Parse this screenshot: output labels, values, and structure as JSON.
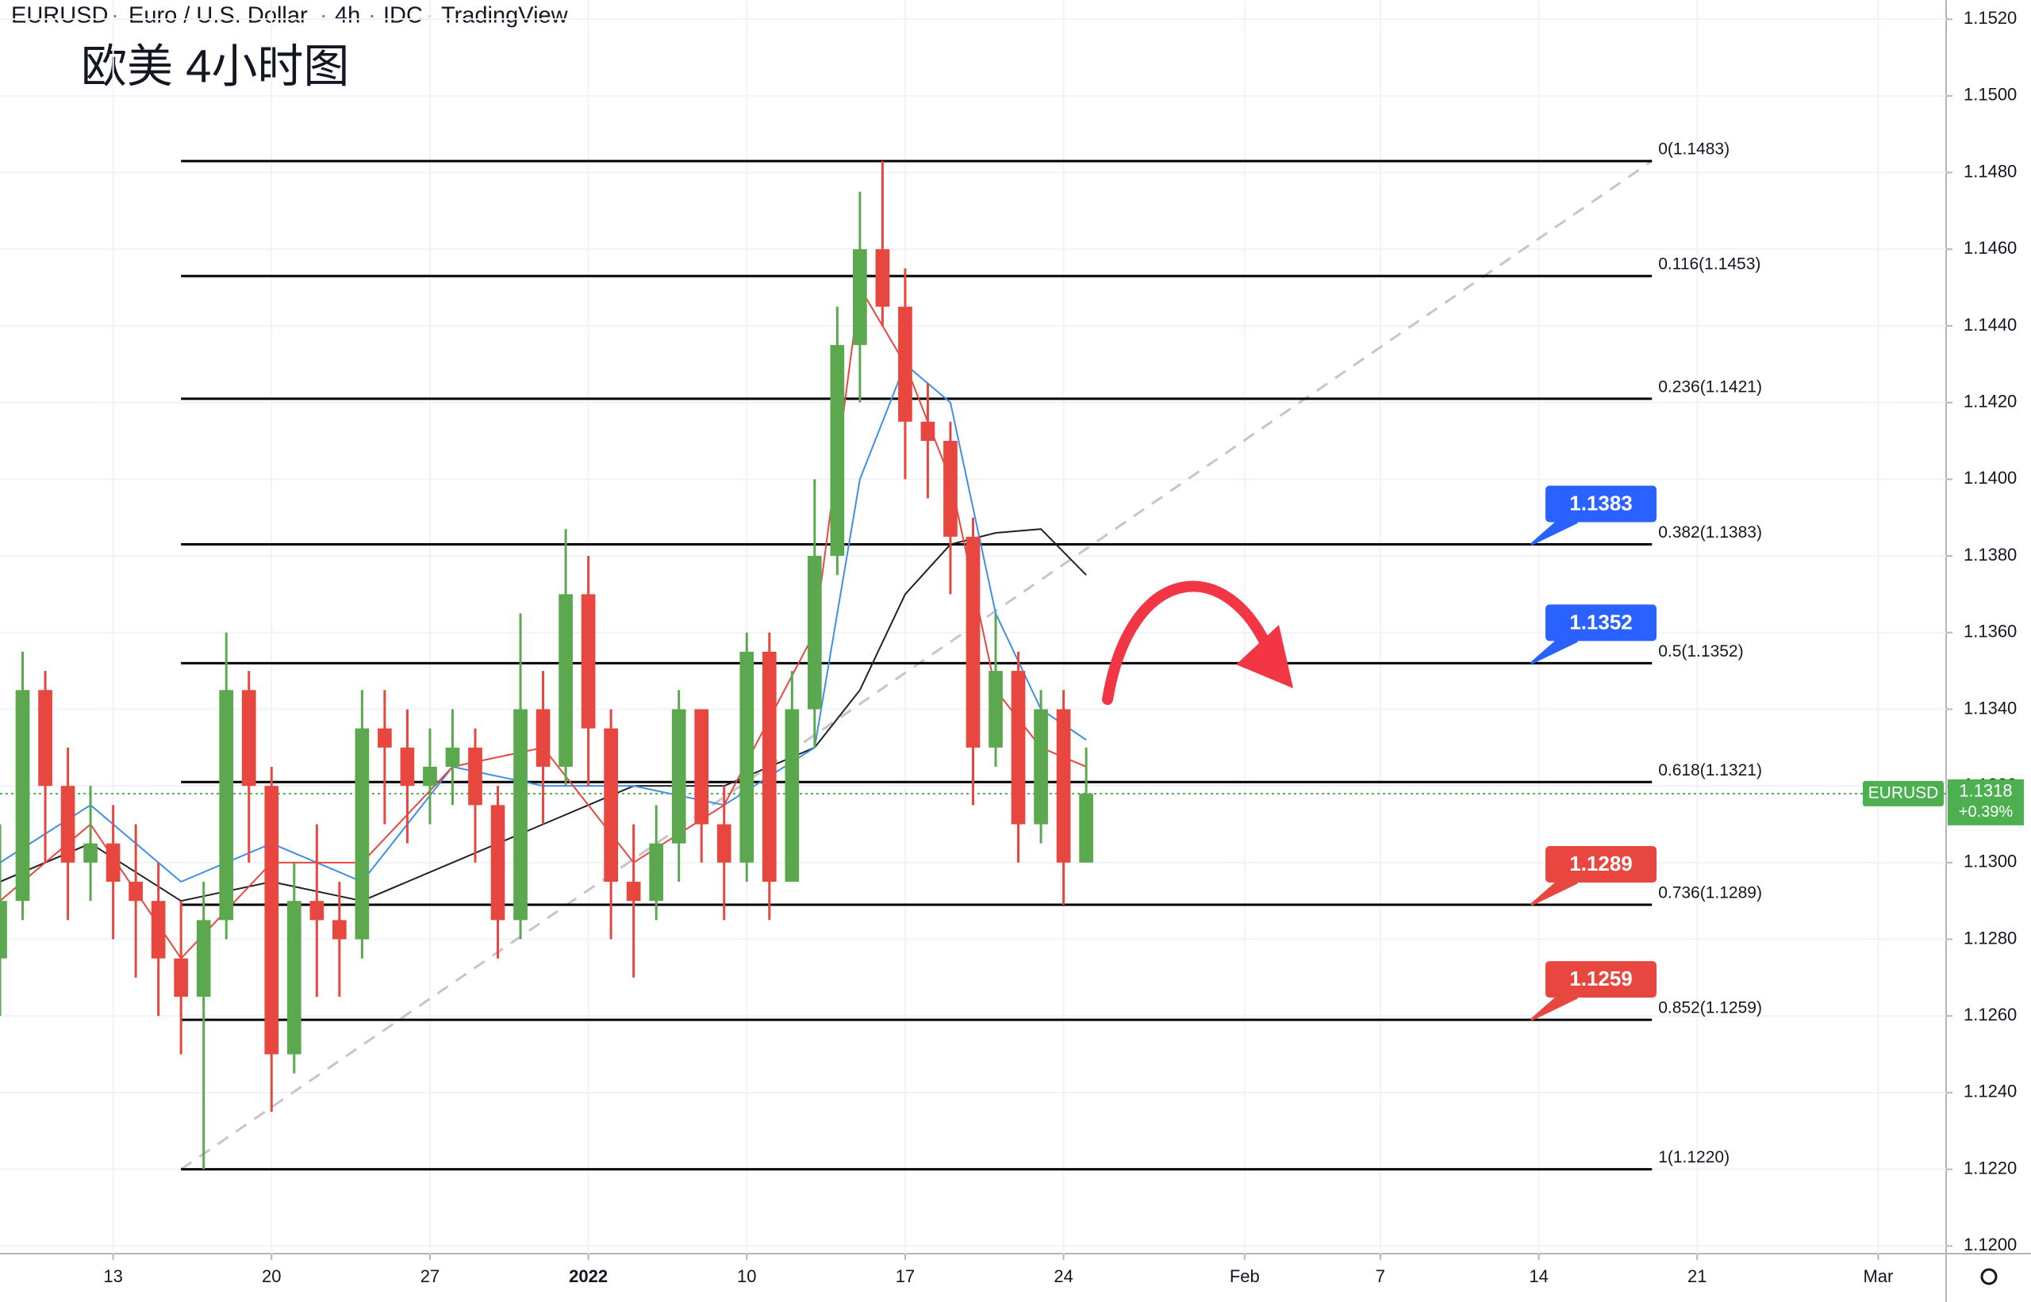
{
  "header": {
    "symbol": "EURUSD",
    "description": "Euro / U.S. Dollar",
    "interval": "4h",
    "source": "IDC",
    "platform": "TradingView"
  },
  "chart_data": {
    "type": "candlestick",
    "title": "欧美 4小时图",
    "x": [
      -5,
      -4,
      -3,
      -2,
      -1,
      0,
      1,
      2,
      3,
      4,
      5,
      6,
      7,
      8,
      9,
      10,
      11,
      12,
      13,
      14,
      15,
      16,
      17,
      18,
      19,
      20,
      21,
      22,
      23,
      24,
      25,
      26,
      27,
      28,
      29,
      30,
      31,
      32,
      33,
      34,
      35,
      36,
      37,
      38,
      39,
      40,
      41,
      42,
      43
    ],
    "open": [
      1.1275,
      1.129,
      1.1345,
      1.132,
      1.13,
      1.1305,
      1.1295,
      1.129,
      1.1275,
      1.1265,
      1.1285,
      1.1345,
      1.132,
      1.125,
      1.129,
      1.1285,
      1.128,
      1.1335,
      1.133,
      1.132,
      1.1325,
      1.133,
      1.1315,
      1.1285,
      1.134,
      1.1325,
      1.137,
      1.1335,
      1.1295,
      1.129,
      1.1305,
      1.134,
      1.131,
      1.13,
      1.1355,
      1.1295,
      1.134,
      1.138,
      1.1435,
      1.146,
      1.1445,
      1.1415,
      1.141,
      1.1385,
      1.133,
      1.135,
      1.131,
      1.134,
      1.13
    ],
    "high": [
      1.131,
      1.1355,
      1.135,
      1.133,
      1.132,
      1.1315,
      1.131,
      1.13,
      1.129,
      1.1295,
      1.136,
      1.135,
      1.1325,
      1.13,
      1.131,
      1.1295,
      1.1345,
      1.1345,
      1.134,
      1.1335,
      1.134,
      1.1335,
      1.132,
      1.1365,
      1.135,
      1.1387,
      1.138,
      1.134,
      1.131,
      1.1315,
      1.1345,
      1.134,
      1.132,
      1.136,
      1.136,
      1.135,
      1.14,
      1.1445,
      1.1475,
      1.1483,
      1.1455,
      1.1425,
      1.1415,
      1.139,
      1.1365,
      1.1355,
      1.1345,
      1.1345,
      1.133
    ],
    "low": [
      1.126,
      1.1285,
      1.13,
      1.1285,
      1.129,
      1.128,
      1.127,
      1.126,
      1.125,
      1.122,
      1.128,
      1.13,
      1.1235,
      1.1245,
      1.1265,
      1.1265,
      1.1275,
      1.131,
      1.1305,
      1.131,
      1.1315,
      1.13,
      1.1275,
      1.128,
      1.131,
      1.132,
      1.132,
      1.128,
      1.127,
      1.1285,
      1.1295,
      1.13,
      1.1285,
      1.1295,
      1.1285,
      1.1295,
      1.133,
      1.1375,
      1.142,
      1.144,
      1.14,
      1.1395,
      1.137,
      1.1315,
      1.1325,
      1.13,
      1.1305,
      1.1289,
      1.13
    ],
    "close": [
      1.129,
      1.1345,
      1.132,
      1.13,
      1.1305,
      1.1295,
      1.129,
      1.1275,
      1.1265,
      1.1285,
      1.1345,
      1.132,
      1.125,
      1.129,
      1.1285,
      1.128,
      1.1335,
      1.133,
      1.132,
      1.1325,
      1.133,
      1.1315,
      1.1285,
      1.134,
      1.1325,
      1.137,
      1.1335,
      1.1295,
      1.129,
      1.1305,
      1.134,
      1.131,
      1.13,
      1.1355,
      1.1295,
      1.134,
      1.138,
      1.1435,
      1.146,
      1.1445,
      1.1415,
      1.141,
      1.1385,
      1.133,
      1.135,
      1.131,
      1.134,
      1.13,
      1.1318
    ],
    "up_color": "#5ba84f",
    "down_color": "#e8473f",
    "series": [
      {
        "color": "#222222",
        "x": [
          -5,
          -1,
          3,
          7,
          11,
          15,
          19,
          23,
          27,
          31,
          33,
          35,
          37,
          39,
          41,
          43
        ],
        "values": [
          1.1295,
          1.1305,
          1.129,
          1.1295,
          1.129,
          1.13,
          1.131,
          1.132,
          1.132,
          1.133,
          1.1345,
          1.137,
          1.1383,
          1.1386,
          1.1387,
          1.1375
        ]
      },
      {
        "color": "#3d8fe8",
        "x": [
          -5,
          -1,
          3,
          7,
          11,
          15,
          19,
          23,
          27,
          31,
          33,
          35,
          37,
          39,
          41,
          43
        ],
        "values": [
          1.13,
          1.1315,
          1.1295,
          1.1305,
          1.1295,
          1.1325,
          1.132,
          1.132,
          1.1315,
          1.133,
          1.14,
          1.143,
          1.142,
          1.1365,
          1.134,
          1.1332
        ]
      },
      {
        "color": "#e8473f",
        "x": [
          -5,
          -1,
          3,
          7,
          11,
          15,
          19,
          23,
          27,
          31,
          33,
          35,
          37,
          39,
          41,
          43
        ],
        "values": [
          1.129,
          1.131,
          1.1275,
          1.13,
          1.13,
          1.1325,
          1.133,
          1.13,
          1.1315,
          1.136,
          1.145,
          1.143,
          1.14,
          1.1345,
          1.133,
          1.1325
        ]
      }
    ],
    "fib": {
      "x": [
        3,
        68
      ],
      "levels": [
        {
          "value": 1.1483,
          "label": "0(1.1483)"
        },
        {
          "value": 1.1453,
          "label": "0.116(1.1453)"
        },
        {
          "value": 1.1421,
          "label": "0.236(1.1421)"
        },
        {
          "value": 1.1383,
          "label": "0.382(1.1383)"
        },
        {
          "value": 1.1352,
          "label": "0.5(1.1352)"
        },
        {
          "value": 1.1321,
          "label": "0.618(1.1321)"
        },
        {
          "value": 1.1289,
          "label": "0.736(1.1289)"
        },
        {
          "value": 1.1259,
          "label": "0.852(1.1259)"
        },
        {
          "value": 1.122,
          "label": "1(1.1220)"
        }
      ]
    },
    "callouts": [
      {
        "value": 1.1383,
        "color": "#2962ff"
      },
      {
        "value": 1.1352,
        "color": "#2962ff"
      },
      {
        "value": 1.1289,
        "color": "#e8473f"
      },
      {
        "value": 1.1259,
        "color": "#e8473f"
      }
    ],
    "last": {
      "symbol": "EURUSD",
      "value": 1.1318,
      "change": "+0.39%",
      "color": "#4caf50"
    },
    "xlim": [
      -5,
      81
    ],
    "xticks": [
      {
        "value": 0,
        "label": "13"
      },
      {
        "value": 7,
        "label": "20"
      },
      {
        "value": 14,
        "label": "27"
      },
      {
        "value": 21,
        "label": "2022"
      },
      {
        "value": 28,
        "label": "10"
      },
      {
        "value": 35,
        "label": "17"
      },
      {
        "value": 42,
        "label": "24"
      },
      {
        "value": 50,
        "label": "Feb"
      },
      {
        "value": 56,
        "label": "7"
      },
      {
        "value": 63,
        "label": "14"
      },
      {
        "value": 70,
        "label": "21"
      },
      {
        "value": 78,
        "label": "Mar"
      }
    ],
    "ylim": [
      1.1198,
      1.1525
    ],
    "yticks": [
      {
        "value": 1.12,
        "label": "1.1200"
      },
      {
        "value": 1.122,
        "label": "1.1220"
      },
      {
        "value": 1.124,
        "label": "1.1240"
      },
      {
        "value": 1.126,
        "label": "1.1260"
      },
      {
        "value": 1.128,
        "label": "1.1280"
      },
      {
        "value": 1.13,
        "label": "1.1300"
      },
      {
        "value": 1.132,
        "label": "1.1320"
      },
      {
        "value": 1.134,
        "label": "1.1340"
      },
      {
        "value": 1.136,
        "label": "1.1360"
      },
      {
        "value": 1.138,
        "label": "1.1380"
      },
      {
        "value": 1.14,
        "label": "1.1400"
      },
      {
        "value": 1.142,
        "label": "1.1420"
      },
      {
        "value": 1.144,
        "label": "1.1440"
      },
      {
        "value": 1.146,
        "label": "1.1460"
      },
      {
        "value": 1.148,
        "label": "1.1480"
      },
      {
        "value": 1.15,
        "label": "1.1500"
      },
      {
        "value": 1.152,
        "label": "1.1520"
      }
    ],
    "grid": true
  }
}
